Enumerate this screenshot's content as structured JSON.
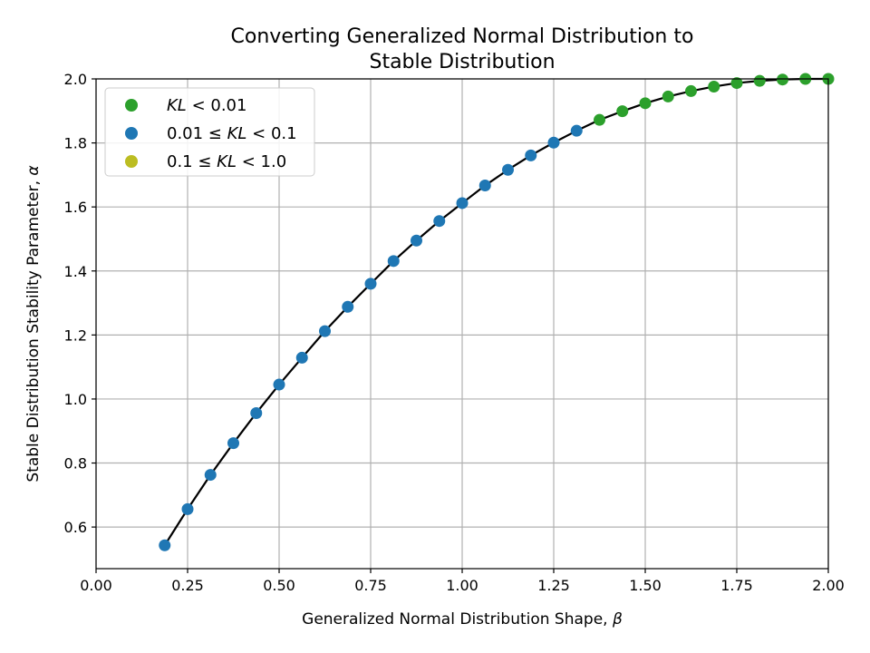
{
  "chart_data": {
    "type": "scatter",
    "title": [
      "Converting Generalized Normal Distribution to",
      "Stable Distribution"
    ],
    "xlabel": {
      "text": "Generalized Normal Distribution Shape, ",
      "symbol": "β"
    },
    "ylabel": {
      "text": "Stable Distribution Stability Parameter, ",
      "symbol": "α"
    },
    "xlim": [
      0.0,
      2.0
    ],
    "ylim": [
      0.47,
      2.0
    ],
    "xticks": [
      "0.00",
      "0.25",
      "0.50",
      "0.75",
      "1.00",
      "1.25",
      "1.50",
      "1.75",
      "2.00"
    ],
    "yticks": [
      "0.6",
      "0.8",
      "1.0",
      "1.2",
      "1.4",
      "1.6",
      "1.8",
      "2.0"
    ],
    "grid": true,
    "legend_position": "top-left",
    "series": [
      {
        "name_parts": [
          "",
          "KL",
          " < 0.01"
        ],
        "color": "#2ca02c",
        "x": [
          1.375,
          1.4375,
          1.5,
          1.5625,
          1.625,
          1.6875,
          1.75,
          1.8125,
          1.875,
          1.9375,
          2.0
        ],
        "y": [
          1.872,
          1.899,
          1.924,
          1.945,
          1.962,
          1.976,
          1.987,
          1.994,
          1.998,
          2.0,
          2.0
        ]
      },
      {
        "name_parts": [
          "0.01 ≤ ",
          "KL",
          " < 0.1"
        ],
        "color": "#1f77b4",
        "x": [
          0.1875,
          0.25,
          0.3125,
          0.375,
          0.4375,
          0.5,
          0.5625,
          0.625,
          0.6875,
          0.75,
          0.8125,
          0.875,
          0.9375,
          1.0,
          1.0625,
          1.125,
          1.1875,
          1.25,
          1.3125
        ],
        "y": [
          0.543,
          0.656,
          0.763,
          0.862,
          0.956,
          1.045,
          1.129,
          1.212,
          1.288,
          1.36,
          1.431,
          1.495,
          1.556,
          1.612,
          1.667,
          1.716,
          1.761,
          1.801,
          1.838
        ]
      },
      {
        "name_parts": [
          "0.1 ≤ ",
          "KL",
          " < 1.0"
        ],
        "color": "#bcbd22",
        "x": [],
        "y": []
      }
    ],
    "fit_curve": {
      "color": "#000000",
      "x": [
        0.1875,
        0.25,
        0.3125,
        0.375,
        0.4375,
        0.5,
        0.5625,
        0.625,
        0.6875,
        0.75,
        0.8125,
        0.875,
        0.9375,
        1.0,
        1.0625,
        1.125,
        1.1875,
        1.25,
        1.3125,
        1.375,
        1.4375,
        1.5,
        1.5625,
        1.625,
        1.6875,
        1.75,
        1.8125,
        1.875,
        1.9375,
        2.0
      ],
      "y": [
        0.543,
        0.656,
        0.763,
        0.862,
        0.956,
        1.045,
        1.129,
        1.212,
        1.288,
        1.36,
        1.431,
        1.495,
        1.556,
        1.612,
        1.667,
        1.716,
        1.761,
        1.801,
        1.838,
        1.872,
        1.899,
        1.924,
        1.945,
        1.962,
        1.976,
        1.987,
        1.994,
        1.998,
        2.0,
        2.0
      ]
    }
  }
}
